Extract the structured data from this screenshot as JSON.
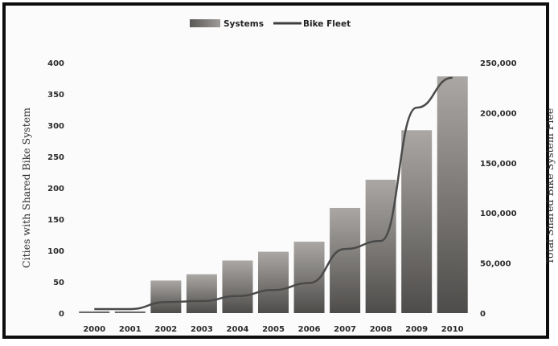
{
  "chart_data": {
    "type": "bar+line",
    "categories": [
      "2000",
      "2001",
      "2002",
      "2003",
      "2004",
      "2005",
      "2006",
      "2007",
      "2008",
      "2009",
      "2010"
    ],
    "series": [
      {
        "name": "Systems",
        "axis": "left",
        "kind": "bar",
        "values": [
          3,
          3,
          52,
          62,
          84,
          98,
          114,
          168,
          213,
          292,
          378
        ]
      },
      {
        "name": "Bike Fleet",
        "axis": "right",
        "kind": "line",
        "values": [
          4000,
          4000,
          11000,
          12000,
          17000,
          23000,
          30000,
          64000,
          72000,
          205000,
          235000
        ]
      }
    ],
    "ylabel_left": "Cities with Shared Bike System",
    "ylabel_right": "Total Shared Bike System Flee",
    "ylim_left": [
      0,
      400
    ],
    "ylim_right": [
      0,
      250000
    ],
    "yticks_left": [
      "0",
      "50",
      "100",
      "150",
      "200",
      "250",
      "300",
      "350",
      "400"
    ],
    "yticks_right": [
      "0",
      "50,000",
      "100,000",
      "150,000",
      "200,000",
      "250,000"
    ],
    "legend_position": "top-center",
    "grid": false,
    "colors": {
      "bar_light": "#aaa7a4",
      "bar_dark": "#4e4c4a",
      "line": "#4a4a4a"
    }
  }
}
